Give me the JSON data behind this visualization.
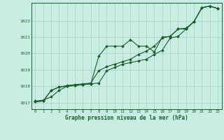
{
  "xlabel": "Graphe pression niveau de la mer (hPa)",
  "bg_color": "#c8eee4",
  "grid_color": "#aad4c8",
  "line_color": "#1a5c2a",
  "xlim": [
    -0.5,
    23.5
  ],
  "ylim": [
    1016.6,
    1023.1
  ],
  "yticks": [
    1017,
    1018,
    1019,
    1020,
    1021,
    1022
  ],
  "xticks": [
    0,
    1,
    2,
    3,
    4,
    5,
    6,
    7,
    8,
    9,
    10,
    11,
    12,
    13,
    14,
    15,
    16,
    17,
    18,
    19,
    20,
    21,
    22,
    23
  ],
  "series1_x": [
    0,
    1,
    2,
    3,
    4,
    5,
    6,
    7,
    8,
    9,
    10,
    11,
    12,
    13,
    14,
    15,
    16,
    17,
    18,
    19,
    20,
    21,
    22,
    23
  ],
  "series1_y": [
    1017.1,
    1017.15,
    1017.35,
    1017.75,
    1018.0,
    1018.05,
    1018.1,
    1018.15,
    1019.85,
    1020.45,
    1020.45,
    1020.45,
    1020.85,
    1020.45,
    1020.45,
    1020.1,
    1021.0,
    1021.05,
    1021.5,
    1021.5,
    1021.95,
    1022.8,
    1022.9,
    1022.75
  ],
  "series2_x": [
    0,
    1,
    2,
    3,
    4,
    5,
    6,
    7,
    8,
    9,
    10,
    11,
    12,
    13,
    14,
    15,
    16,
    17,
    18,
    19,
    20,
    21,
    22,
    23
  ],
  "series2_y": [
    1017.05,
    1017.1,
    1017.75,
    1017.95,
    1018.0,
    1018.05,
    1018.1,
    1018.15,
    1018.2,
    1018.95,
    1019.15,
    1019.35,
    1019.45,
    1019.55,
    1019.65,
    1019.95,
    1020.2,
    1020.95,
    1021.05,
    1021.5,
    1021.95,
    1022.8,
    1022.9,
    1022.75
  ],
  "series3_x": [
    0,
    1,
    2,
    3,
    4,
    5,
    6,
    7,
    8,
    9,
    10,
    11,
    12,
    13,
    14,
    15,
    16,
    17,
    18,
    19,
    20,
    21,
    22,
    23
  ],
  "series3_y": [
    1017.05,
    1017.1,
    1017.75,
    1017.95,
    1018.05,
    1018.1,
    1018.15,
    1018.2,
    1018.95,
    1019.2,
    1019.35,
    1019.5,
    1019.65,
    1019.95,
    1020.15,
    1020.45,
    1020.95,
    1021.05,
    1021.5,
    1021.55,
    1021.95,
    1022.8,
    1022.9,
    1022.75
  ]
}
